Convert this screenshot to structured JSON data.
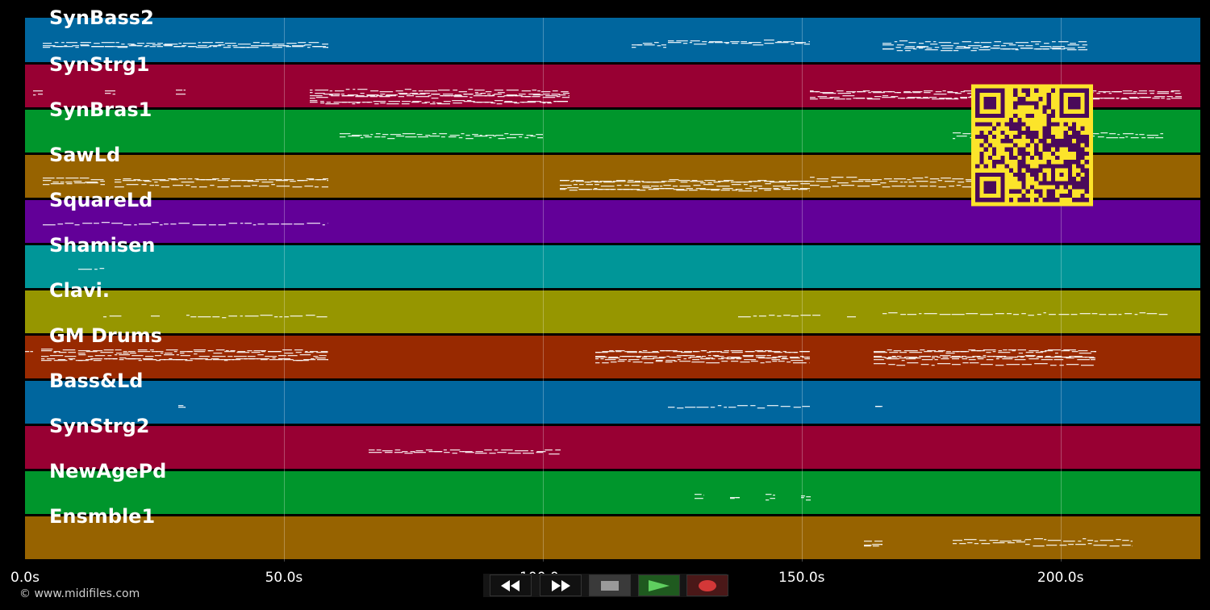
{
  "tracks": [
    {
      "name": "SynBass2",
      "color": "#00669e"
    },
    {
      "name": "SynStrg1",
      "color": "#980033"
    },
    {
      "name": "SynBras1",
      "color": "#00962c"
    },
    {
      "name": "SawLd",
      "color": "#976300"
    },
    {
      "name": "SquareLd",
      "color": "#620098"
    },
    {
      "name": "Shamisen",
      "color": "#009698"
    },
    {
      "name": "Clavi.",
      "color": "#969600"
    },
    {
      "name": "GM Drums",
      "color": "#982900"
    },
    {
      "name": "Bass&Ld",
      "color": "#00669e"
    },
    {
      "name": "SynStrg2",
      "color": "#980033"
    },
    {
      "name": "NewAgePd",
      "color": "#00962c"
    },
    {
      "name": "Ensmble1",
      "color": "#976300"
    }
  ],
  "time_axis": {
    "ticks": [
      "0.0s",
      "50.0s",
      "100.0s",
      "150.0s",
      "200.0s"
    ],
    "tick_values": [
      0,
      50,
      100,
      150,
      200
    ],
    "range_seconds": [
      0,
      227
    ]
  },
  "transport": {
    "rewind_icon": "rewind-icon",
    "forward_icon": "fast-forward-icon",
    "stop_icon": "stop-icon",
    "play_icon": "play-icon",
    "record_icon": "record-icon",
    "play_color": "#5fcf5f",
    "record_color": "#d43838"
  },
  "copyright": "© www.midifiles.com",
  "overlay": {
    "qr_color": "#fce42a",
    "qr_dark": "#4a0a5a"
  }
}
